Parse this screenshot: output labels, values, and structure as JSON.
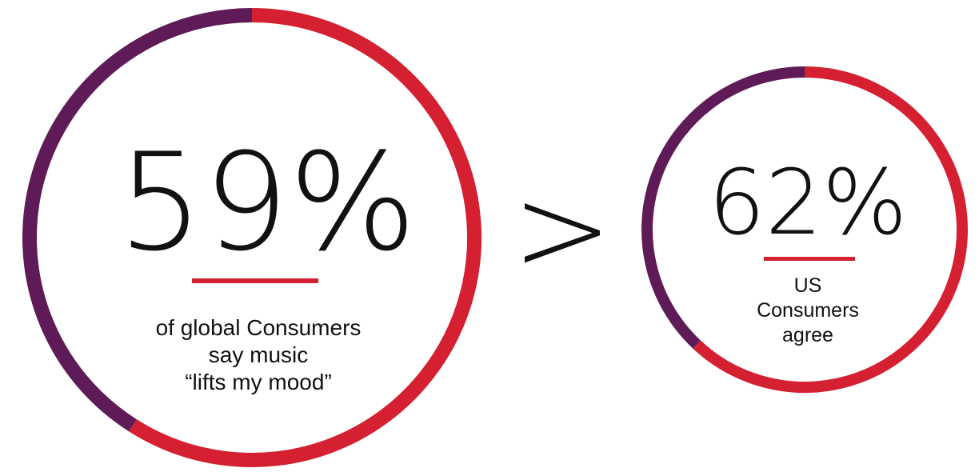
{
  "colors": {
    "filled": "#d42030",
    "remaining": "#5e1b57",
    "text": "#111111",
    "background": "#ffffff"
  },
  "chart_data": {
    "type": "pie",
    "charts": [
      {
        "value": 59,
        "label": "59%",
        "caption": [
          "of global Consumers",
          "say music",
          "“lifts my mood”"
        ]
      },
      {
        "value": 62,
        "label": "62%",
        "caption": [
          "US",
          "Consumers",
          "agree"
        ]
      }
    ],
    "comparison_symbol": ">"
  }
}
